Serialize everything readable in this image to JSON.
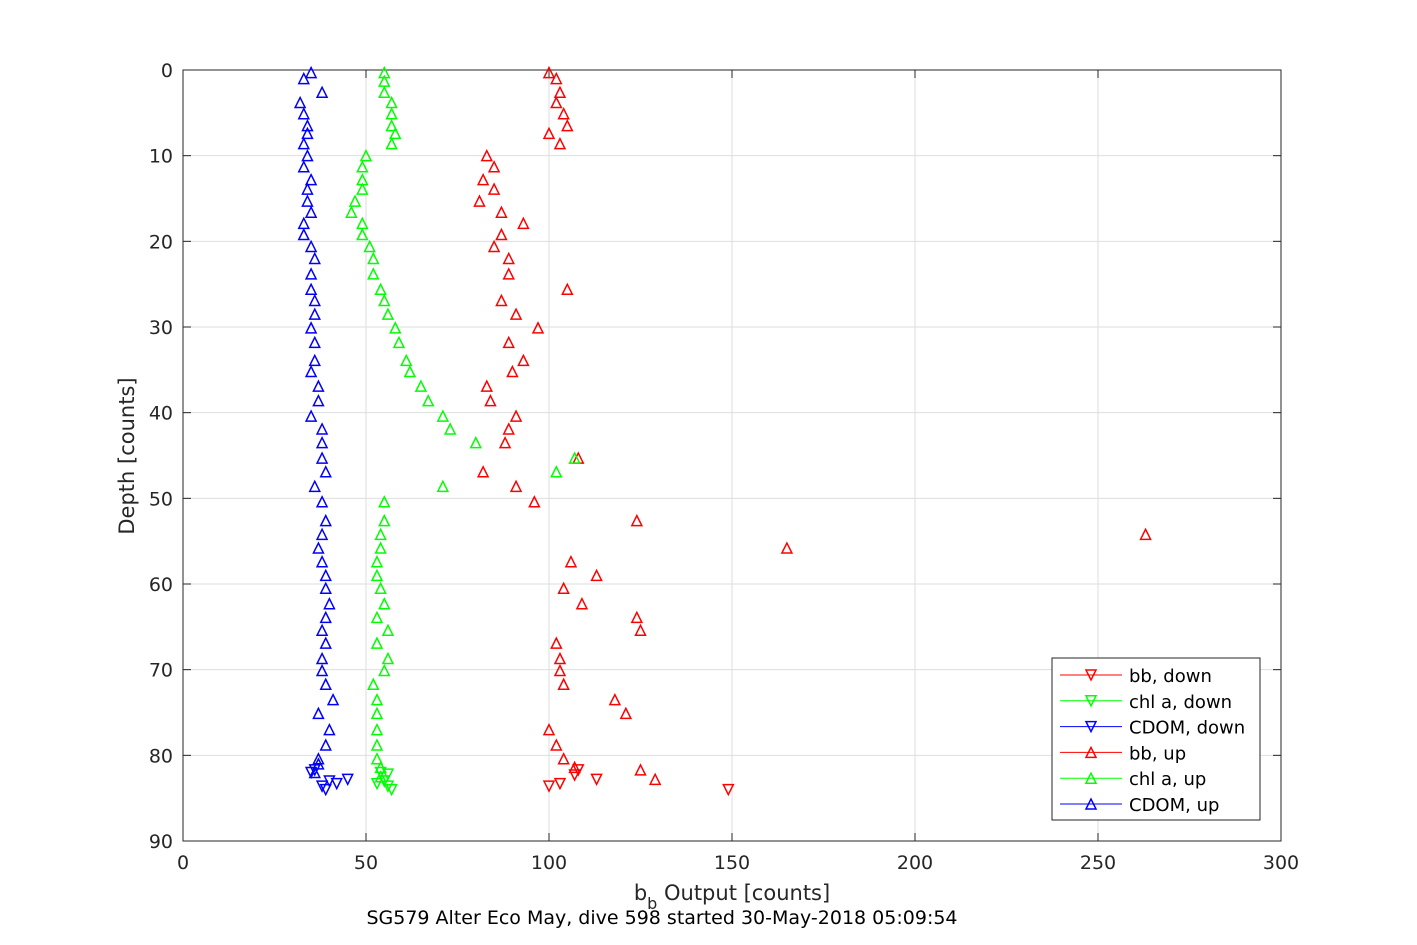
{
  "chart_data": {
    "type": "scatter",
    "xlabel_main": "b",
    "xlabel_sub": "b",
    "xlabel_rest": " Output [counts]",
    "ylabel": "Depth [counts]",
    "subtitle": "SG579 Alter Eco May, dive 598 started 30-May-2018 05:09:54",
    "xlim": [
      0,
      300
    ],
    "ylim": [
      0,
      90
    ],
    "y_reversed": true,
    "grid": true,
    "x_ticks": [
      0,
      50,
      100,
      150,
      200,
      250,
      300
    ],
    "y_ticks": [
      0,
      10,
      20,
      30,
      40,
      50,
      60,
      70,
      80,
      90
    ],
    "x_tick_labels": [
      "0",
      "50",
      "100",
      "150",
      "200",
      "250",
      "300"
    ],
    "y_tick_labels": [
      "0",
      "10",
      "20",
      "30",
      "40",
      "50",
      "60",
      "70",
      "80",
      "90"
    ],
    "legend_placement": "bottom-right",
    "series": [
      {
        "name": "bb, down",
        "color": "#ff0000",
        "marker": "triangle-down",
        "points": [
          [
            100,
            83.6
          ],
          [
            103,
            83.3
          ],
          [
            107,
            82.3
          ],
          [
            108,
            81.7
          ],
          [
            113,
            82.8
          ],
          [
            149,
            84.0
          ]
        ]
      },
      {
        "name": "chl a, down",
        "color": "#00ff00",
        "marker": "triangle-down",
        "points": [
          [
            54,
            82.0
          ],
          [
            56,
            82.2
          ],
          [
            55,
            83.0
          ],
          [
            57,
            84.0
          ],
          [
            53,
            83.3
          ],
          [
            56,
            83.6
          ]
        ]
      },
      {
        "name": "CDOM, down",
        "color": "#0000ff",
        "marker": "triangle-down",
        "points": [
          [
            35,
            82.0
          ],
          [
            36,
            81.7
          ],
          [
            38,
            83.6
          ],
          [
            40,
            83.0
          ],
          [
            42,
            83.3
          ],
          [
            45,
            82.8
          ],
          [
            39,
            84.0
          ]
        ]
      },
      {
        "name": "bb, up",
        "color": "#ff0000",
        "marker": "triangle-up",
        "points": [
          [
            100,
            0.3
          ],
          [
            102,
            1.0
          ],
          [
            103,
            2.6
          ],
          [
            102,
            3.8
          ],
          [
            104,
            5.1
          ],
          [
            105,
            6.5
          ],
          [
            100,
            7.4
          ],
          [
            103,
            8.6
          ],
          [
            83,
            10.0
          ],
          [
            85,
            11.3
          ],
          [
            82,
            12.8
          ],
          [
            85,
            13.9
          ],
          [
            81,
            15.3
          ],
          [
            87,
            16.6
          ],
          [
            93,
            17.9
          ],
          [
            87,
            19.2
          ],
          [
            85,
            20.6
          ],
          [
            89,
            22.0
          ],
          [
            89,
            23.8
          ],
          [
            105,
            25.6
          ],
          [
            87,
            26.9
          ],
          [
            91,
            28.5
          ],
          [
            97,
            30.1
          ],
          [
            89,
            31.8
          ],
          [
            93,
            33.9
          ],
          [
            90,
            35.2
          ],
          [
            83,
            36.9
          ],
          [
            84,
            38.6
          ],
          [
            91,
            40.4
          ],
          [
            89,
            41.9
          ],
          [
            88,
            43.5
          ],
          [
            108,
            45.3
          ],
          [
            82,
            46.9
          ],
          [
            91,
            48.6
          ],
          [
            96,
            50.4
          ],
          [
            124,
            52.6
          ],
          [
            263,
            54.2
          ],
          [
            165,
            55.8
          ],
          [
            106,
            57.4
          ],
          [
            113,
            59.0
          ],
          [
            104,
            60.5
          ],
          [
            109,
            62.3
          ],
          [
            124,
            63.9
          ],
          [
            125,
            65.4
          ],
          [
            102,
            66.9
          ],
          [
            103,
            68.7
          ],
          [
            103,
            70.1
          ],
          [
            104,
            71.7
          ],
          [
            118,
            73.5
          ],
          [
            121,
            75.1
          ],
          [
            100,
            77.0
          ],
          [
            102,
            78.8
          ],
          [
            104,
            80.4
          ],
          [
            107,
            81.4
          ],
          [
            125,
            81.7
          ],
          [
            129,
            82.8
          ]
        ]
      },
      {
        "name": "chl a, up",
        "color": "#00ff00",
        "marker": "triangle-up",
        "points": [
          [
            55,
            0.3
          ],
          [
            55,
            1.3
          ],
          [
            55,
            2.6
          ],
          [
            57,
            3.8
          ],
          [
            57,
            5.1
          ],
          [
            57,
            6.5
          ],
          [
            58,
            7.4
          ],
          [
            57,
            8.6
          ],
          [
            50,
            10.0
          ],
          [
            49,
            11.3
          ],
          [
            49,
            12.8
          ],
          [
            49,
            13.9
          ],
          [
            47,
            15.3
          ],
          [
            46,
            16.6
          ],
          [
            49,
            17.9
          ],
          [
            49,
            19.2
          ],
          [
            51,
            20.6
          ],
          [
            52,
            22.0
          ],
          [
            52,
            23.8
          ],
          [
            54,
            25.6
          ],
          [
            55,
            26.9
          ],
          [
            56,
            28.5
          ],
          [
            58,
            30.1
          ],
          [
            59,
            31.8
          ],
          [
            61,
            33.9
          ],
          [
            62,
            35.2
          ],
          [
            65,
            36.9
          ],
          [
            67,
            38.6
          ],
          [
            71,
            40.4
          ],
          [
            73,
            41.9
          ],
          [
            80,
            43.5
          ],
          [
            107,
            45.3
          ],
          [
            102,
            46.9
          ],
          [
            71,
            48.6
          ],
          [
            55,
            50.4
          ],
          [
            55,
            52.6
          ],
          [
            54,
            54.2
          ],
          [
            54,
            55.8
          ],
          [
            53,
            57.4
          ],
          [
            53,
            59.0
          ],
          [
            54,
            60.5
          ],
          [
            55,
            62.3
          ],
          [
            53,
            63.9
          ],
          [
            56,
            65.4
          ],
          [
            53,
            66.9
          ],
          [
            56,
            68.7
          ],
          [
            55,
            70.1
          ],
          [
            52,
            71.7
          ],
          [
            53,
            73.5
          ],
          [
            53,
            75.1
          ],
          [
            53,
            77.0
          ],
          [
            53,
            78.8
          ],
          [
            53,
            80.4
          ],
          [
            54,
            81.4
          ],
          [
            54,
            82.5
          ]
        ]
      },
      {
        "name": "CDOM, up",
        "color": "#0000ff",
        "marker": "triangle-up",
        "points": [
          [
            35,
            0.3
          ],
          [
            33,
            1.0
          ],
          [
            38,
            2.6
          ],
          [
            32,
            3.8
          ],
          [
            33,
            5.1
          ],
          [
            34,
            6.5
          ],
          [
            34,
            7.4
          ],
          [
            33,
            8.6
          ],
          [
            34,
            10.0
          ],
          [
            33,
            11.3
          ],
          [
            35,
            12.8
          ],
          [
            34,
            13.9
          ],
          [
            34,
            15.3
          ],
          [
            35,
            16.6
          ],
          [
            33,
            17.9
          ],
          [
            33,
            19.2
          ],
          [
            35,
            20.6
          ],
          [
            36,
            22.0
          ],
          [
            35,
            23.8
          ],
          [
            35,
            25.6
          ],
          [
            36,
            26.9
          ],
          [
            36,
            28.5
          ],
          [
            35,
            30.1
          ],
          [
            36,
            31.8
          ],
          [
            36,
            33.9
          ],
          [
            35,
            35.2
          ],
          [
            37,
            36.9
          ],
          [
            37,
            38.6
          ],
          [
            35,
            40.4
          ],
          [
            38,
            41.9
          ],
          [
            38,
            43.5
          ],
          [
            38,
            45.3
          ],
          [
            39,
            46.9
          ],
          [
            36,
            48.6
          ],
          [
            38,
            50.4
          ],
          [
            39,
            52.6
          ],
          [
            38,
            54.2
          ],
          [
            37,
            55.8
          ],
          [
            38,
            57.4
          ],
          [
            39,
            59.0
          ],
          [
            39,
            60.5
          ],
          [
            40,
            62.3
          ],
          [
            39,
            63.9
          ],
          [
            38,
            65.4
          ],
          [
            39,
            66.9
          ],
          [
            38,
            68.7
          ],
          [
            38,
            70.1
          ],
          [
            39,
            71.7
          ],
          [
            41,
            73.5
          ],
          [
            37,
            75.1
          ],
          [
            40,
            77.0
          ],
          [
            39,
            78.8
          ],
          [
            37,
            80.4
          ],
          [
            37,
            81.0
          ],
          [
            36,
            82.0
          ]
        ]
      }
    ]
  }
}
